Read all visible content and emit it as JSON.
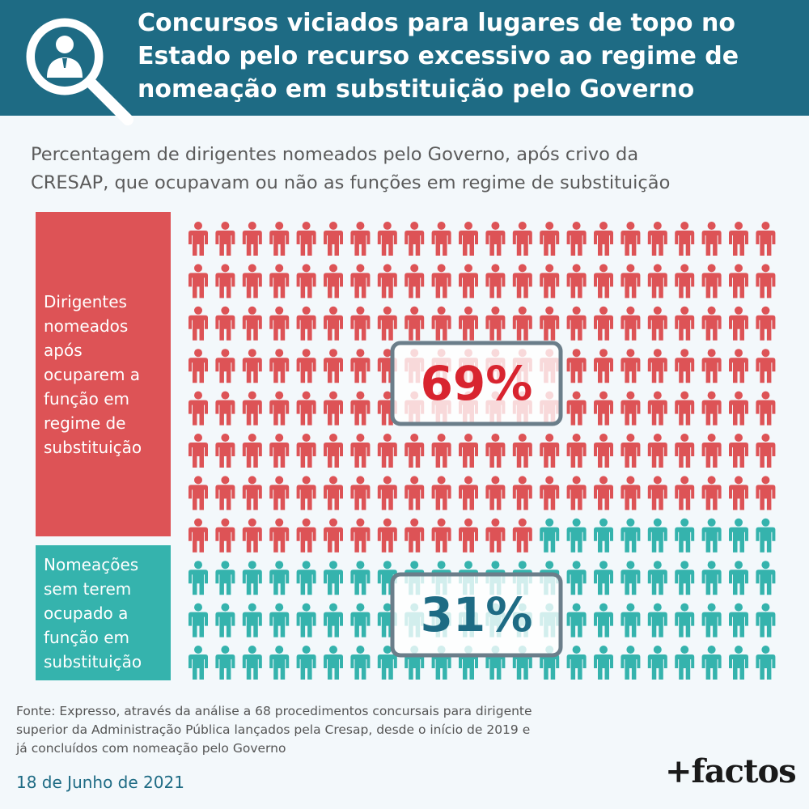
{
  "header": {
    "title_lines": [
      "Concursos viciados para lugares de topo no",
      "Estado pelo recurso excessivo ao regime de",
      "nomeação em substituição pelo Governo"
    ],
    "icon": "magnifier-person-icon"
  },
  "subtitle_lines": [
    "Percentagem de dirigentes nomeados pelo Governo, após crivo da",
    "CRESAP, que ocupavam ou não as funções em regime de substituição"
  ],
  "chart_data": {
    "type": "pictogram",
    "grid": {
      "columns": 22,
      "rows": 11
    },
    "total_icons": 242,
    "series": [
      {
        "label_lines": [
          "Dirigentes",
          "nomeados",
          "após",
          "ocuparem a",
          "função em",
          "regime de",
          "substituição"
        ],
        "percent_label": "69%",
        "value": 69,
        "color": "#dd5356"
      },
      {
        "label_lines": [
          "Nomeações",
          "sem terem",
          "ocupado a",
          "função em",
          "substituição"
        ],
        "percent_label": "31%",
        "value": 31,
        "color": "#35b3ad"
      }
    ]
  },
  "colors": {
    "header_bg": "#1e6b84",
    "red": "#dd5356",
    "teal": "#35b3ad",
    "pct_red_text": "#d8242f",
    "pct_teal_text": "#1e6b84",
    "badge_border": "#6b7e8a"
  },
  "footer": {
    "source_lines": [
      "Fonte: Expresso, através da análise a 68 procedimentos concursais para dirigente",
      "superior da Administração Pública lançados pela Cresap, desde o início de 2019 e",
      "já concluídos com nomeação pelo Governo"
    ],
    "date": "18 de Junho de 2021",
    "brand": "+factos"
  }
}
